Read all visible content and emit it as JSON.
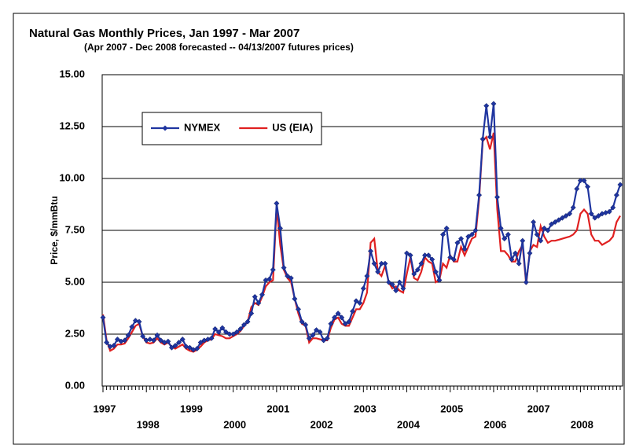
{
  "chart_data": {
    "type": "line",
    "title": "Natural Gas Monthly Prices, Jan 1997 - Mar 2007",
    "subtitle": "(Apr 2007 - Dec 2008 forecasted -- 04/13/2007 futures prices)",
    "y_label": "Price, $/mmBtu",
    "categories": [
      "1997",
      null,
      null,
      null,
      null,
      null,
      null,
      null,
      null,
      null,
      null,
      null,
      "1998",
      null,
      null,
      null,
      null,
      null,
      null,
      null,
      null,
      null,
      null,
      null,
      "1999",
      null,
      null,
      null,
      null,
      null,
      null,
      null,
      null,
      null,
      null,
      null,
      "2000",
      null,
      null,
      null,
      null,
      null,
      null,
      null,
      null,
      null,
      null,
      null,
      "2001",
      null,
      null,
      null,
      null,
      null,
      null,
      null,
      null,
      null,
      null,
      null,
      "2002",
      null,
      null,
      null,
      null,
      null,
      null,
      null,
      null,
      null,
      null,
      null,
      "2003",
      null,
      null,
      null,
      null,
      null,
      null,
      null,
      null,
      null,
      null,
      null,
      "2004",
      null,
      null,
      null,
      null,
      null,
      null,
      null,
      null,
      null,
      null,
      null,
      "2005",
      null,
      null,
      null,
      null,
      null,
      null,
      null,
      null,
      null,
      null,
      null,
      "2006",
      null,
      null,
      null,
      null,
      null,
      null,
      null,
      null,
      null,
      null,
      null,
      "2007",
      null,
      null,
      null,
      null,
      null,
      null,
      null,
      null,
      null,
      null,
      null,
      "2008",
      null,
      null,
      null,
      null,
      null,
      null,
      null,
      null,
      null,
      null,
      null
    ],
    "series": [
      {
        "name": "NYMEX",
        "color": "#1f35a0",
        "marker": "diamond",
        "values": [
          3.3,
          2.1,
          1.9,
          1.95,
          2.25,
          2.15,
          2.2,
          2.45,
          2.85,
          3.15,
          3.1,
          2.4,
          2.2,
          2.25,
          2.2,
          2.45,
          2.2,
          2.1,
          2.15,
          1.85,
          1.95,
          2.1,
          2.25,
          1.9,
          1.85,
          1.75,
          1.8,
          2.1,
          2.2,
          2.25,
          2.3,
          2.75,
          2.6,
          2.8,
          2.6,
          2.5,
          2.5,
          2.6,
          2.75,
          2.95,
          3.1,
          3.5,
          4.3,
          4.0,
          4.4,
          5.1,
          5.15,
          5.6,
          8.8,
          7.6,
          5.7,
          5.3,
          5.2,
          4.2,
          3.7,
          3.1,
          2.95,
          2.3,
          2.45,
          2.7,
          2.6,
          2.2,
          2.3,
          3.0,
          3.3,
          3.5,
          3.3,
          3.0,
          3.1,
          3.6,
          4.1,
          4.0,
          4.7,
          5.3,
          6.5,
          5.9,
          5.5,
          5.9,
          5.9,
          5.0,
          4.9,
          4.6,
          5.0,
          4.7,
          6.4,
          6.3,
          5.4,
          5.6,
          5.9,
          6.3,
          6.3,
          6.1,
          5.5,
          5.1,
          7.3,
          7.6,
          6.2,
          6.1,
          6.9,
          7.1,
          6.6,
          7.2,
          7.3,
          7.5,
          9.2,
          11.9,
          13.5,
          12.0,
          13.6,
          9.1,
          7.6,
          7.1,
          7.3,
          6.1,
          6.4,
          5.9,
          7.0,
          5.0,
          6.4,
          7.9,
          7.3,
          7.0,
          7.6,
          7.5,
          7.8,
          7.9,
          8.0,
          8.1,
          8.2,
          8.3,
          8.6,
          9.5,
          9.9,
          9.9,
          9.6,
          8.3,
          8.1,
          8.2,
          8.3,
          8.35,
          8.4,
          8.6,
          9.2,
          9.7
        ]
      },
      {
        "name": "US (EIA)",
        "color": "#e02020",
        "marker": "none",
        "values": [
          3.45,
          2.2,
          1.7,
          1.8,
          2.0,
          2.0,
          2.05,
          2.3,
          2.6,
          2.9,
          3.0,
          2.4,
          2.1,
          2.05,
          2.1,
          2.3,
          2.1,
          2.0,
          2.1,
          1.9,
          1.8,
          1.9,
          2.0,
          1.8,
          1.7,
          1.65,
          1.75,
          1.9,
          2.1,
          2.2,
          2.25,
          2.5,
          2.45,
          2.4,
          2.3,
          2.3,
          2.4,
          2.5,
          2.65,
          2.9,
          3.1,
          3.8,
          4.0,
          3.9,
          4.3,
          4.8,
          5.0,
          5.1,
          8.6,
          6.8,
          5.6,
          5.2,
          5.0,
          4.2,
          3.5,
          3.0,
          2.9,
          2.1,
          2.3,
          2.3,
          2.25,
          2.2,
          2.2,
          2.8,
          3.2,
          3.3,
          3.0,
          2.9,
          2.9,
          3.3,
          3.7,
          3.7,
          4.0,
          4.5,
          6.9,
          7.1,
          5.5,
          5.3,
          5.8,
          5.0,
          4.7,
          4.8,
          4.6,
          4.5,
          5.4,
          6.2,
          5.2,
          5.1,
          5.5,
          6.2,
          6.0,
          5.9,
          5.0,
          5.1,
          5.9,
          5.7,
          6.3,
          6.0,
          6.0,
          6.7,
          6.3,
          6.7,
          7.1,
          7.2,
          9.0,
          11.8,
          12.0,
          11.4,
          12.2,
          8.5,
          6.5,
          6.5,
          6.3,
          6.0,
          6.0,
          6.5,
          6.8,
          4.9,
          6.5,
          6.8,
          6.7,
          7.7,
          7.2,
          6.9,
          7.0,
          7.0,
          7.05,
          7.1,
          7.15,
          7.2,
          7.3,
          7.5,
          8.3,
          8.5,
          8.3,
          7.3,
          7.0,
          7.0,
          6.8,
          6.9,
          7.0,
          7.2,
          7.9,
          8.2
        ]
      }
    ],
    "ylim": [
      0,
      15
    ],
    "yticks": [
      {
        "value": 0,
        "label": "0.00"
      },
      {
        "value": 2.5,
        "label": "2.50"
      },
      {
        "value": 5,
        "label": "5.00"
      },
      {
        "value": 7.5,
        "label": "7.50"
      },
      {
        "value": 10,
        "label": "10.00"
      },
      {
        "value": 12.5,
        "label": "12.50"
      },
      {
        "value": 15,
        "label": "15.00"
      }
    ],
    "grid": true,
    "legend": "upper left"
  }
}
